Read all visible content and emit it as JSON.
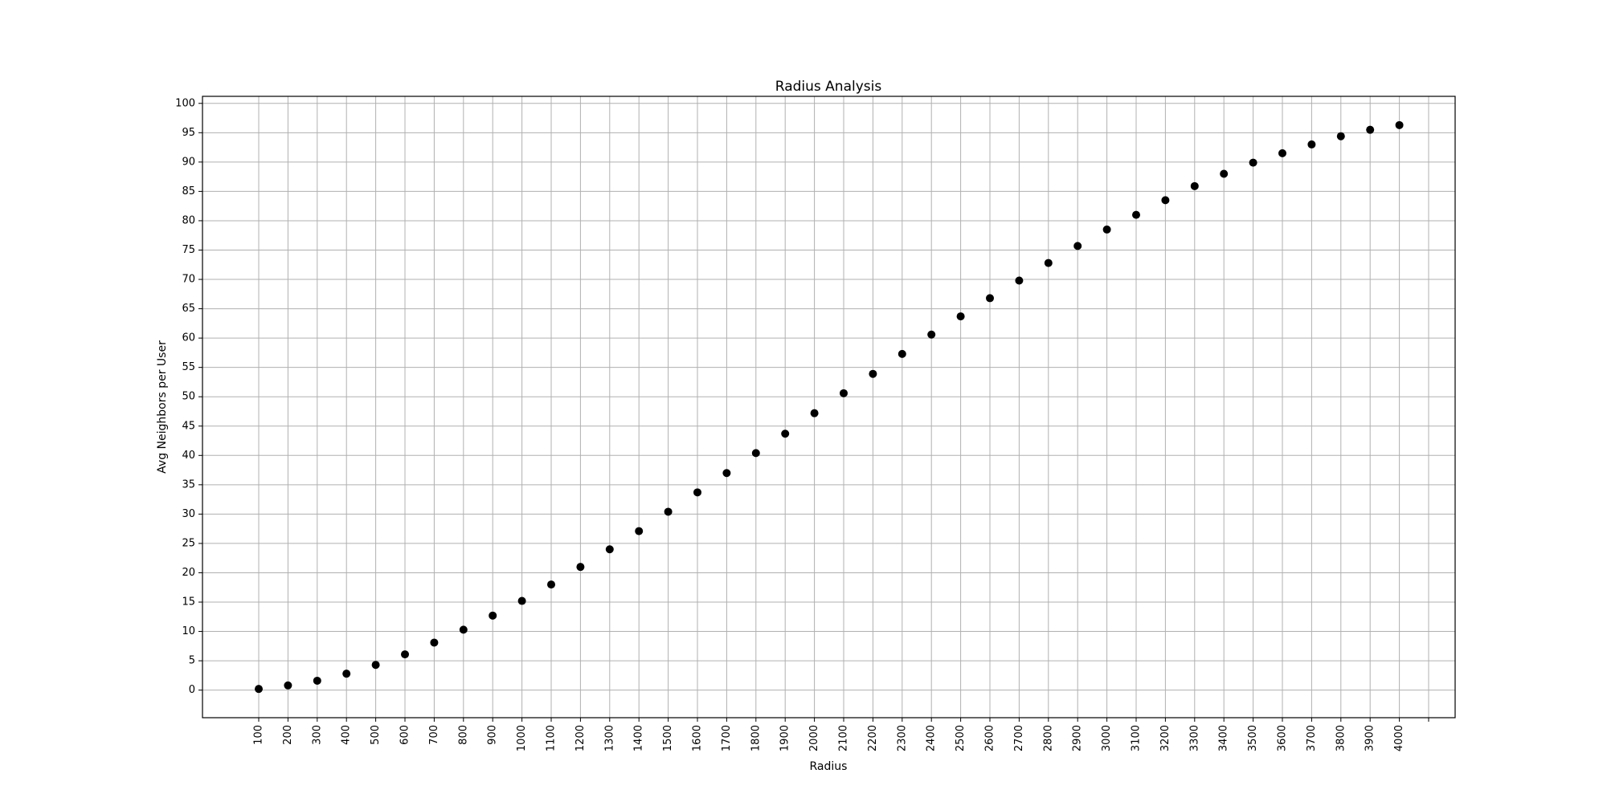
{
  "chart_data": {
    "type": "scatter",
    "title": "Radius Analysis",
    "xlabel": "Radius",
    "ylabel": "Avg Neighbors per User",
    "grid": true,
    "marker_color": "#000000",
    "grid_color": "#b0b0b0",
    "x": [
      100,
      200,
      300,
      400,
      500,
      600,
      700,
      800,
      900,
      1000,
      1100,
      1200,
      1300,
      1400,
      1500,
      1600,
      1700,
      1800,
      1900,
      2000,
      2100,
      2200,
      2300,
      2400,
      2500,
      2600,
      2700,
      2800,
      2900,
      3000,
      3100,
      3200,
      3300,
      3400,
      3500,
      3600,
      3700,
      3800,
      3900,
      4000
    ],
    "y": [
      0.2,
      0.8,
      1.6,
      2.8,
      4.3,
      6.1,
      8.1,
      10.3,
      12.7,
      15.2,
      18.0,
      21.0,
      24.0,
      27.1,
      30.4,
      33.7,
      37.0,
      40.4,
      43.7,
      47.2,
      50.6,
      53.9,
      57.3,
      60.6,
      63.7,
      66.8,
      69.8,
      72.8,
      75.7,
      78.5,
      81.0,
      83.5,
      85.9,
      88.0,
      89.9,
      91.5,
      93.0,
      94.4,
      95.5,
      96.3
    ],
    "xticks": [
      "100",
      "200",
      "300",
      "400",
      "500",
      "600",
      "700",
      "800",
      "900",
      "1000",
      "1100",
      "1200",
      "1300",
      "1400",
      "1500",
      "1600",
      "1700",
      "1800",
      "1900",
      "2000",
      "2100",
      "2200",
      "2300",
      "2400",
      "2500",
      "2600",
      "2700",
      "2800",
      "2900",
      "3000",
      "3100",
      "3200",
      "3300",
      "3400",
      "3500",
      "3600",
      "3700",
      "3800",
      "3900",
      "4000",
      ""
    ],
    "yticks": [
      "0",
      "5",
      "10",
      "15",
      "20",
      "25",
      "30",
      "35",
      "40",
      "45",
      "50",
      "55",
      "60",
      "65",
      "70",
      "75",
      "80",
      "85",
      "90",
      "95",
      "100"
    ],
    "ylim": [
      -4.7,
      101.2
    ]
  }
}
